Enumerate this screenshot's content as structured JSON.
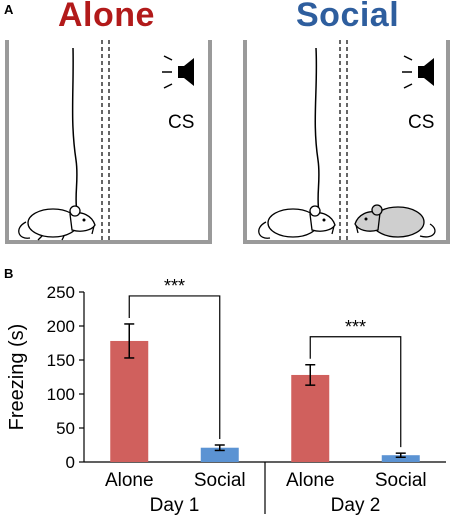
{
  "panel_a": {
    "label": "A",
    "conditions": [
      {
        "title": "Alone",
        "color": "#b21a1a",
        "cs_label": "CS"
      },
      {
        "title": "Social",
        "color": "#2e5e9e",
        "cs_label": "CS"
      }
    ]
  },
  "panel_b": {
    "label": "B"
  },
  "chart_data": {
    "type": "bar",
    "ylabel": "Freezing (s)",
    "ylim": [
      0,
      250
    ],
    "yticks": [
      0,
      50,
      100,
      150,
      200,
      250
    ],
    "groups": [
      {
        "label": "Day 1",
        "categories": [
          "Alone",
          "Social"
        ],
        "values": [
          178,
          21
        ],
        "errors": [
          25,
          4
        ]
      },
      {
        "label": "Day 2",
        "categories": [
          "Alone",
          "Social"
        ],
        "values": [
          128,
          10
        ],
        "errors": [
          15,
          3
        ]
      }
    ],
    "colors": {
      "Alone": "#d0605d",
      "Social": "#5b93d3"
    },
    "significance": [
      {
        "group": 0,
        "label": "***"
      },
      {
        "group": 1,
        "label": "***"
      }
    ],
    "grid": false
  }
}
